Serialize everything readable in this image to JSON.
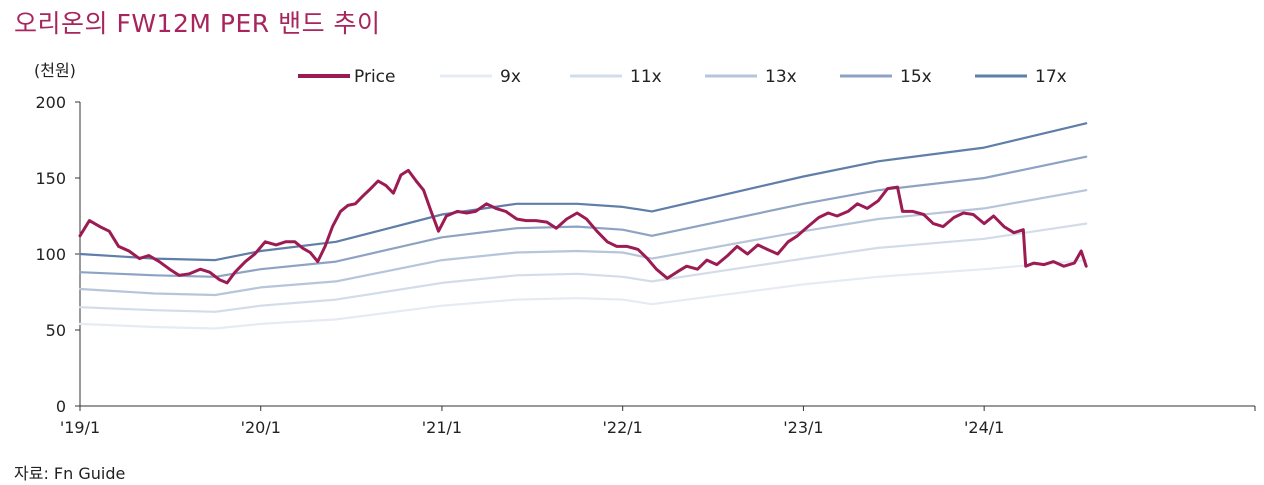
{
  "title": "오리온의 FW12M PER 밴드 추이",
  "source": "자료: Fn Guide",
  "chart_data": {
    "type": "line",
    "unit_label": "(천원)",
    "xlabel": "",
    "ylabel": "",
    "ylim": [
      0,
      200
    ],
    "yticks": [
      0,
      50,
      100,
      150,
      200
    ],
    "xlim": [
      "2019-01-01",
      "2025-07-01"
    ],
    "xticks": [
      {
        "date": "2019-01-01",
        "label": "'19/1"
      },
      {
        "date": "2020-01-01",
        "label": "'20/1"
      },
      {
        "date": "2021-01-01",
        "label": "'21/1"
      },
      {
        "date": "2022-01-01",
        "label": "'22/1"
      },
      {
        "date": "2023-01-01",
        "label": "'23/1"
      },
      {
        "date": "2024-01-01",
        "label": "'24/1"
      }
    ],
    "grid": false,
    "legend_position": "top",
    "series": [
      {
        "name": "Price",
        "color": "#9b1b52",
        "points": [
          [
            "2019-01-01",
            112
          ],
          [
            "2019-01-20",
            122
          ],
          [
            "2019-02-10",
            118
          ],
          [
            "2019-03-01",
            115
          ],
          [
            "2019-03-20",
            105
          ],
          [
            "2019-04-10",
            102
          ],
          [
            "2019-05-01",
            97
          ],
          [
            "2019-05-20",
            99
          ],
          [
            "2019-06-10",
            95
          ],
          [
            "2019-07-01",
            90
          ],
          [
            "2019-07-20",
            86
          ],
          [
            "2019-08-10",
            87
          ],
          [
            "2019-09-01",
            90
          ],
          [
            "2019-09-20",
            88
          ],
          [
            "2019-10-10",
            83
          ],
          [
            "2019-10-25",
            81
          ],
          [
            "2019-11-10",
            88
          ],
          [
            "2019-12-01",
            95
          ],
          [
            "2019-12-20",
            100
          ],
          [
            "2020-01-10",
            108
          ],
          [
            "2020-02-01",
            106
          ],
          [
            "2020-02-20",
            108
          ],
          [
            "2020-03-10",
            108
          ],
          [
            "2020-03-25",
            104
          ],
          [
            "2020-04-10",
            101
          ],
          [
            "2020-04-25",
            95
          ],
          [
            "2020-05-10",
            105
          ],
          [
            "2020-05-25",
            118
          ],
          [
            "2020-06-10",
            128
          ],
          [
            "2020-06-25",
            132
          ],
          [
            "2020-07-10",
            133
          ],
          [
            "2020-07-25",
            138
          ],
          [
            "2020-08-10",
            143
          ],
          [
            "2020-08-25",
            148
          ],
          [
            "2020-09-10",
            145
          ],
          [
            "2020-09-25",
            140
          ],
          [
            "2020-10-10",
            152
          ],
          [
            "2020-10-25",
            155
          ],
          [
            "2020-11-10",
            148
          ],
          [
            "2020-11-25",
            142
          ],
          [
            "2020-12-10",
            128
          ],
          [
            "2020-12-25",
            115
          ],
          [
            "2021-01-10",
            125
          ],
          [
            "2021-02-01",
            128
          ],
          [
            "2021-02-20",
            127
          ],
          [
            "2021-03-10",
            128
          ],
          [
            "2021-04-01",
            133
          ],
          [
            "2021-04-20",
            130
          ],
          [
            "2021-05-10",
            128
          ],
          [
            "2021-06-01",
            123
          ],
          [
            "2021-06-20",
            122
          ],
          [
            "2021-07-10",
            122
          ],
          [
            "2021-08-01",
            121
          ],
          [
            "2021-08-20",
            117
          ],
          [
            "2021-09-10",
            123
          ],
          [
            "2021-10-01",
            127
          ],
          [
            "2021-10-20",
            123
          ],
          [
            "2021-11-10",
            115
          ],
          [
            "2021-12-01",
            108
          ],
          [
            "2021-12-20",
            105
          ],
          [
            "2022-01-10",
            105
          ],
          [
            "2022-02-01",
            103
          ],
          [
            "2022-02-20",
            97
          ],
          [
            "2022-03-10",
            90
          ],
          [
            "2022-04-01",
            84
          ],
          [
            "2022-04-20",
            88
          ],
          [
            "2022-05-10",
            92
          ],
          [
            "2022-06-01",
            90
          ],
          [
            "2022-06-20",
            96
          ],
          [
            "2022-07-10",
            93
          ],
          [
            "2022-08-01",
            99
          ],
          [
            "2022-08-20",
            105
          ],
          [
            "2022-09-10",
            100
          ],
          [
            "2022-10-01",
            106
          ],
          [
            "2022-10-20",
            103
          ],
          [
            "2022-11-10",
            100
          ],
          [
            "2022-12-01",
            108
          ],
          [
            "2022-12-20",
            112
          ],
          [
            "2023-01-10",
            118
          ],
          [
            "2023-02-01",
            124
          ],
          [
            "2023-02-20",
            127
          ],
          [
            "2023-03-10",
            125
          ],
          [
            "2023-04-01",
            128
          ],
          [
            "2023-04-20",
            133
          ],
          [
            "2023-05-10",
            130
          ],
          [
            "2023-06-01",
            135
          ],
          [
            "2023-06-20",
            143
          ],
          [
            "2023-07-10",
            144
          ],
          [
            "2023-07-20",
            128
          ],
          [
            "2023-08-10",
            128
          ],
          [
            "2023-09-01",
            126
          ],
          [
            "2023-09-20",
            120
          ],
          [
            "2023-10-10",
            118
          ],
          [
            "2023-11-01",
            124
          ],
          [
            "2023-11-20",
            127
          ],
          [
            "2023-12-10",
            126
          ],
          [
            "2024-01-01",
            120
          ],
          [
            "2024-01-20",
            125
          ],
          [
            "2024-02-10",
            118
          ],
          [
            "2024-03-01",
            114
          ],
          [
            "2024-03-20",
            116
          ],
          [
            "2024-03-25",
            92
          ],
          [
            "2024-04-10",
            94
          ],
          [
            "2024-05-01",
            93
          ],
          [
            "2024-05-20",
            95
          ],
          [
            "2024-06-10",
            92
          ],
          [
            "2024-07-01",
            94
          ],
          [
            "2024-07-15",
            102
          ],
          [
            "2024-07-25",
            92
          ]
        ]
      },
      {
        "name": "9x",
        "color": "#e6ebf3",
        "points": [
          [
            "2019-01-01",
            54
          ],
          [
            "2019-06-01",
            52
          ],
          [
            "2019-10-01",
            51
          ],
          [
            "2020-01-01",
            54
          ],
          [
            "2020-06-01",
            57
          ],
          [
            "2021-01-01",
            66
          ],
          [
            "2021-06-01",
            70
          ],
          [
            "2021-10-01",
            71
          ],
          [
            "2022-01-01",
            70
          ],
          [
            "2022-03-01",
            67
          ],
          [
            "2023-01-01",
            80
          ],
          [
            "2023-06-01",
            85
          ],
          [
            "2024-01-01",
            90
          ],
          [
            "2024-07-25",
            96
          ]
        ]
      },
      {
        "name": "11x",
        "color": "#d3dce9",
        "points": [
          [
            "2019-01-01",
            65
          ],
          [
            "2019-06-01",
            63
          ],
          [
            "2019-10-01",
            62
          ],
          [
            "2020-01-01",
            66
          ],
          [
            "2020-06-01",
            70
          ],
          [
            "2021-01-01",
            81
          ],
          [
            "2021-06-01",
            86
          ],
          [
            "2021-10-01",
            87
          ],
          [
            "2022-01-01",
            85
          ],
          [
            "2022-03-01",
            82
          ],
          [
            "2023-01-01",
            97
          ],
          [
            "2023-06-01",
            104
          ],
          [
            "2024-01-01",
            110
          ],
          [
            "2024-07-25",
            120
          ]
        ]
      },
      {
        "name": "13x",
        "color": "#b6c5da",
        "points": [
          [
            "2019-01-01",
            77
          ],
          [
            "2019-06-01",
            74
          ],
          [
            "2019-10-01",
            73
          ],
          [
            "2020-01-01",
            78
          ],
          [
            "2020-06-01",
            82
          ],
          [
            "2021-01-01",
            96
          ],
          [
            "2021-06-01",
            101
          ],
          [
            "2021-10-01",
            102
          ],
          [
            "2022-01-01",
            101
          ],
          [
            "2022-03-01",
            97
          ],
          [
            "2023-01-01",
            115
          ],
          [
            "2023-06-01",
            123
          ],
          [
            "2024-01-01",
            130
          ],
          [
            "2024-07-25",
            142
          ]
        ]
      },
      {
        "name": "15x",
        "color": "#8ea3c4",
        "points": [
          [
            "2019-01-01",
            88
          ],
          [
            "2019-06-01",
            86
          ],
          [
            "2019-10-01",
            85
          ],
          [
            "2020-01-01",
            90
          ],
          [
            "2020-06-01",
            95
          ],
          [
            "2021-01-01",
            111
          ],
          [
            "2021-06-01",
            117
          ],
          [
            "2021-10-01",
            118
          ],
          [
            "2022-01-01",
            116
          ],
          [
            "2022-03-01",
            112
          ],
          [
            "2023-01-01",
            133
          ],
          [
            "2023-06-01",
            142
          ],
          [
            "2024-01-01",
            150
          ],
          [
            "2024-07-25",
            164
          ]
        ]
      },
      {
        "name": "17x",
        "color": "#5f7ea8",
        "points": [
          [
            "2019-01-01",
            100
          ],
          [
            "2019-06-01",
            97
          ],
          [
            "2019-10-01",
            96
          ],
          [
            "2020-01-01",
            102
          ],
          [
            "2020-06-01",
            108
          ],
          [
            "2021-01-01",
            126
          ],
          [
            "2021-06-01",
            133
          ],
          [
            "2021-10-01",
            133
          ],
          [
            "2022-01-01",
            131
          ],
          [
            "2022-03-01",
            128
          ],
          [
            "2023-01-01",
            151
          ],
          [
            "2023-06-01",
            161
          ],
          [
            "2024-01-01",
            170
          ],
          [
            "2024-07-25",
            186
          ]
        ]
      }
    ]
  }
}
